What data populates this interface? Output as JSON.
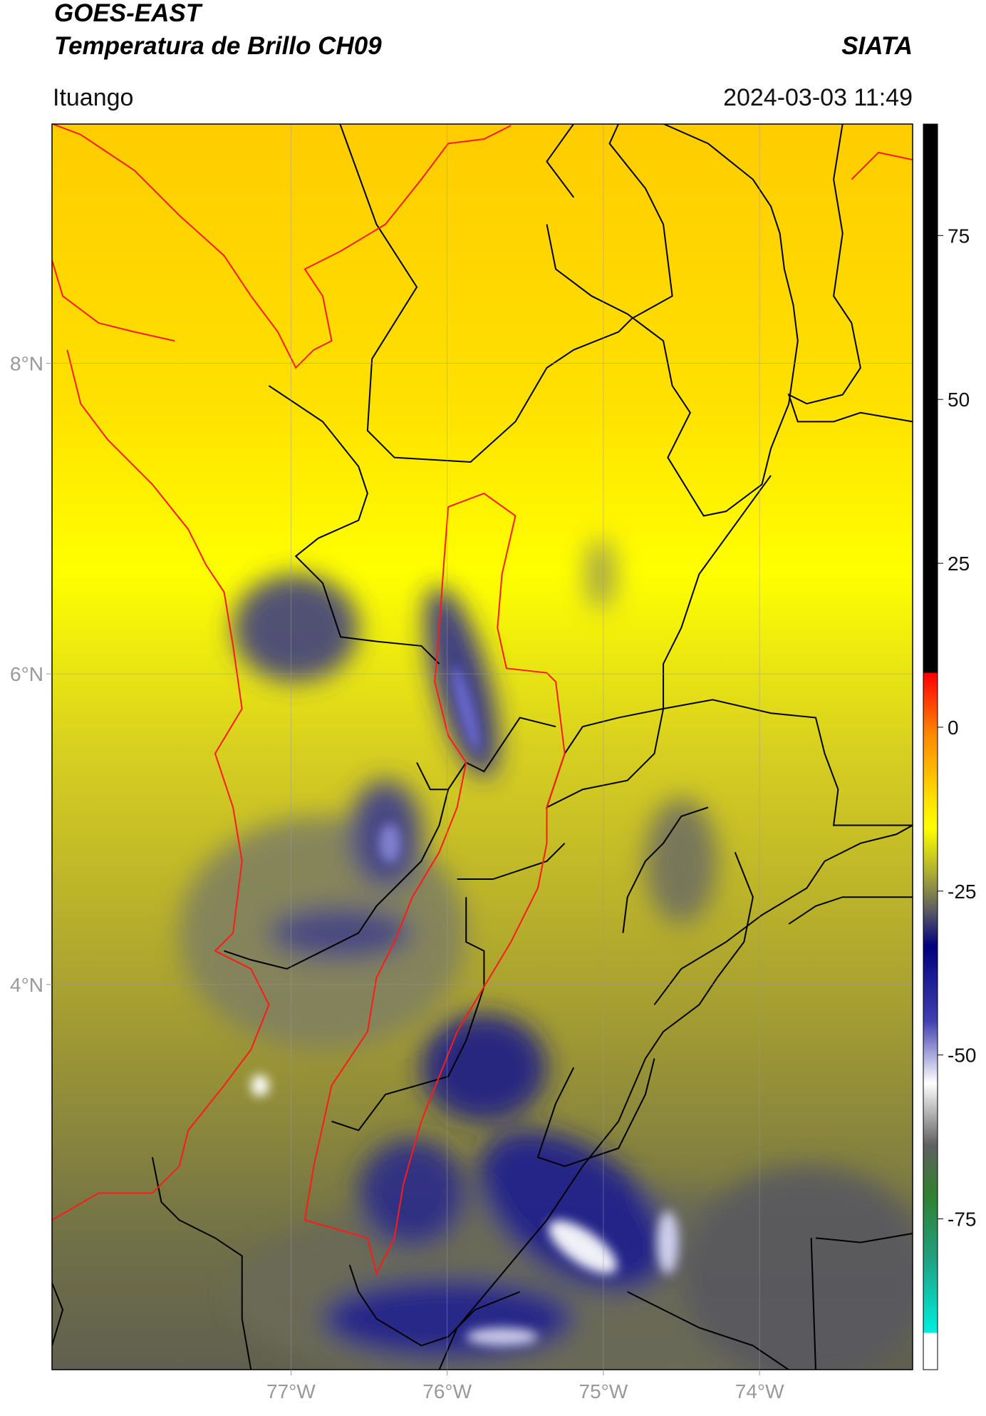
{
  "chart_data": {
    "type": "map",
    "title": "GOES-EAST",
    "subtitle": "Temperatura de Brillo CH09",
    "source": "SIATA",
    "location": "Ituango",
    "datetime": "2024-03-03 11:49",
    "xlim": [
      -78.53,
      -73.02
    ],
    "ylim": [
      1.52,
      9.54
    ],
    "xticks": [
      {
        "value": -77,
        "label": "77°W"
      },
      {
        "value": -76,
        "label": "76°W"
      },
      {
        "value": -75,
        "label": "75°W"
      },
      {
        "value": -74,
        "label": "74°W"
      }
    ],
    "yticks": [
      {
        "value": 4,
        "label": "4°N"
      },
      {
        "value": 6,
        "label": "6°N"
      },
      {
        "value": 8,
        "label": "8°N"
      }
    ],
    "grid": true,
    "colorbar": {
      "lim": [
        -98,
        92
      ],
      "ticks": [
        -75,
        -50,
        -25,
        0,
        25,
        50,
        75
      ]
    }
  }
}
